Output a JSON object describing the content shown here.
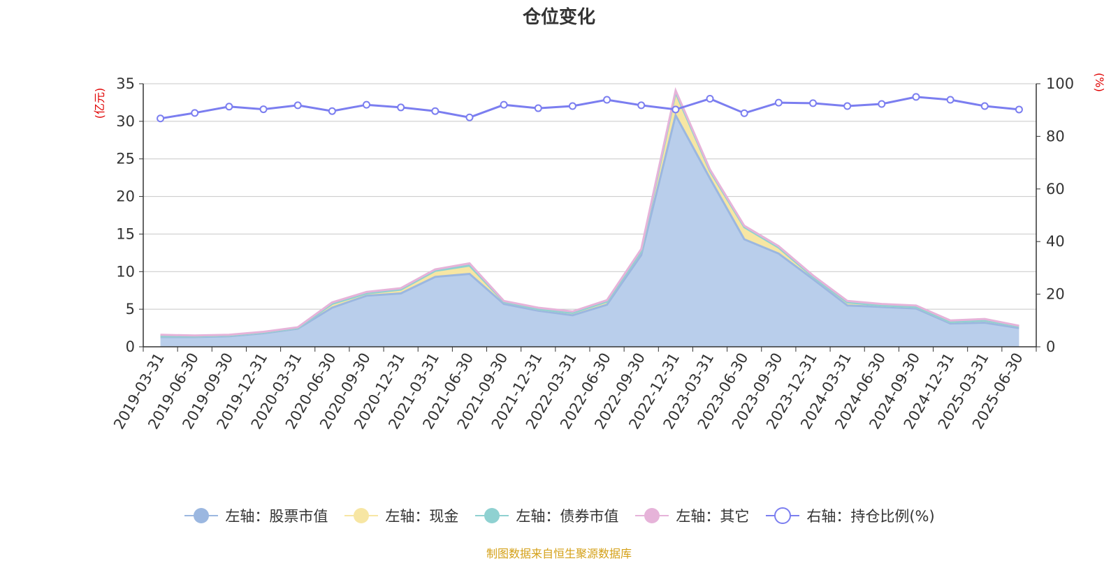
{
  "source_note": "制图数据来自恒生聚源数据库",
  "chart_data": {
    "type": "area",
    "title": "仓位变化",
    "left_axis": {
      "unit": "(亿元)",
      "ylim": [
        0,
        35
      ],
      "ticks": [
        0,
        5,
        10,
        15,
        20,
        25,
        30,
        35
      ]
    },
    "right_axis": {
      "unit": "(%)",
      "ylim": [
        0,
        100
      ],
      "ticks": [
        0,
        20,
        40,
        60,
        80,
        100
      ]
    },
    "grid": true,
    "legend_position": "bottom",
    "categories": [
      "2019-03-31",
      "2019-06-30",
      "2019-09-30",
      "2019-12-31",
      "2020-03-31",
      "2020-06-30",
      "2020-09-30",
      "2020-12-31",
      "2021-03-31",
      "2021-06-30",
      "2021-09-30",
      "2021-12-31",
      "2022-03-31",
      "2022-06-30",
      "2022-09-30",
      "2022-12-31",
      "2023-03-31",
      "2023-06-30",
      "2023-09-30",
      "2023-12-31",
      "2024-03-31",
      "2024-06-30",
      "2024-09-30",
      "2024-12-31",
      "2025-03-31",
      "2025-06-30"
    ],
    "series": [
      {
        "name": "左轴：股票市值",
        "axis": "left",
        "stacked": true,
        "color": "#9bb7e0",
        "fill": "#b9ceeb",
        "values": [
          1.3,
          1.3,
          1.4,
          1.8,
          2.4,
          5.2,
          6.8,
          7.1,
          9.3,
          9.7,
          5.7,
          4.8,
          4.2,
          5.6,
          12.2,
          30.8,
          22.4,
          14.3,
          12.4,
          9.0,
          5.5,
          5.3,
          5.1,
          3.1,
          3.2,
          2.5
        ]
      },
      {
        "name": "左轴：现金",
        "axis": "left",
        "stacked": true,
        "color": "#f7e6a3",
        "fill": "#f7e6a3",
        "values": [
          0.1,
          0.1,
          0.1,
          0.1,
          0.1,
          0.5,
          0.3,
          0.5,
          0.8,
          0.9,
          0.3,
          0.2,
          0.3,
          0.4,
          0.5,
          3.0,
          1.0,
          1.6,
          0.8,
          0.3,
          0.4,
          0.2,
          0.2,
          0.2,
          0.3,
          0.2
        ]
      },
      {
        "name": "左轴：债券市值",
        "axis": "left",
        "stacked": true,
        "color": "#8fd1d1",
        "fill": "#8fd1d1",
        "values": [
          0,
          0,
          0,
          0,
          0,
          0,
          0,
          0,
          0,
          0.2,
          0,
          0,
          0,
          0,
          0,
          0,
          0,
          0,
          0,
          0,
          0,
          0,
          0,
          0,
          0,
          0
        ]
      },
      {
        "name": "左轴：其它",
        "axis": "left",
        "stacked": true,
        "color": "#e6b3d9",
        "fill": "#e6b3d9",
        "values": [
          0.2,
          0.1,
          0.1,
          0.1,
          0.1,
          0.2,
          0.2,
          0.2,
          0.2,
          0.3,
          0.1,
          0.2,
          0.2,
          0.2,
          0.3,
          0.3,
          0.2,
          0.2,
          0.2,
          0.2,
          0.2,
          0.2,
          0.2,
          0.2,
          0.2,
          0.1
        ]
      },
      {
        "name": "右轴：持仓比例(%)",
        "axis": "right",
        "stacked": false,
        "color": "#7b7ef0",
        "fill": "none",
        "values": [
          86.8,
          88.9,
          91.3,
          90.3,
          91.8,
          89.6,
          92.0,
          91.0,
          89.6,
          87.2,
          92.0,
          90.7,
          91.5,
          93.9,
          91.8,
          90.2,
          94.3,
          88.8,
          92.8,
          92.6,
          91.5,
          92.3,
          95.0,
          93.9,
          91.5,
          90.2
        ]
      }
    ]
  }
}
